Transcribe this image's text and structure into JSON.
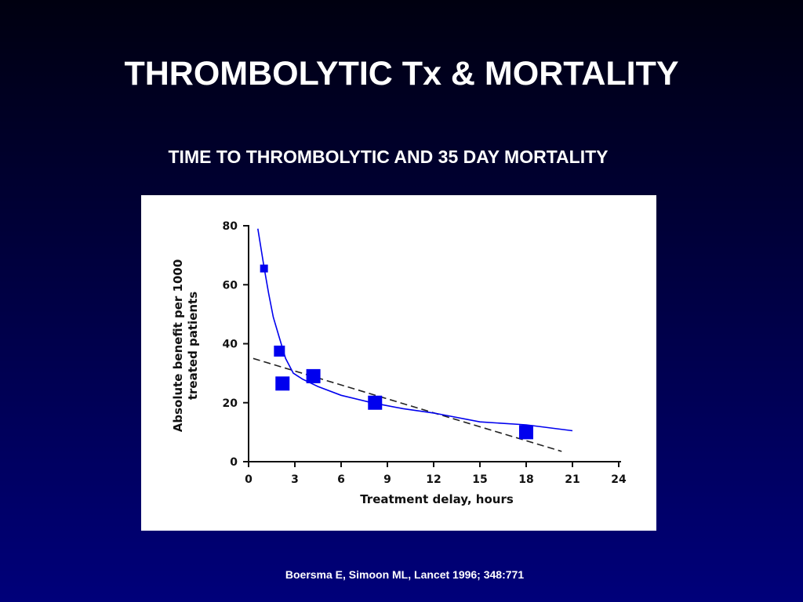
{
  "slide": {
    "title": "THROMBOLYTIC Tx & MORTALITY",
    "subtitle": "TIME TO THROMBOLYTIC AND 35 DAY MORTALITY",
    "citation": "Boersma E, Simoon ML, Lancet 1996; 348:771"
  },
  "chart_data": {
    "type": "scatter",
    "title": "",
    "xlabel": "Treatment delay, hours",
    "ylabel_lines": [
      "Absolute benefit per 1000",
      "treated patients"
    ],
    "xlim": [
      0,
      24
    ],
    "ylim": [
      0,
      80
    ],
    "x_ticks": [
      0,
      3,
      6,
      9,
      12,
      15,
      18,
      21,
      24
    ],
    "y_ticks": [
      0,
      20,
      40,
      60,
      80
    ],
    "grid": false,
    "colors": {
      "points": "#0000ee",
      "curve": "#0000ee",
      "trend": "#222222"
    },
    "points": [
      {
        "x": 1.0,
        "y": 65.5,
        "size": "small"
      },
      {
        "x": 2.0,
        "y": 37.5,
        "size": "medium"
      },
      {
        "x": 2.2,
        "y": 26.5,
        "size": "large"
      },
      {
        "x": 4.2,
        "y": 29.0,
        "size": "large"
      },
      {
        "x": 8.2,
        "y": 20.0,
        "size": "large"
      },
      {
        "x": 18.0,
        "y": 10.0,
        "size": "large"
      }
    ],
    "curve": [
      [
        0.6,
        79
      ],
      [
        1.0,
        66
      ],
      [
        1.3,
        57
      ],
      [
        1.6,
        49
      ],
      [
        2.0,
        42
      ],
      [
        2.4,
        35
      ],
      [
        2.9,
        30
      ],
      [
        3.5,
        28
      ],
      [
        4.5,
        25.5
      ],
      [
        6.0,
        22.5
      ],
      [
        8.0,
        20
      ],
      [
        10.0,
        18
      ],
      [
        12.0,
        16.5
      ],
      [
        15.0,
        13.5
      ],
      [
        18.0,
        12.5
      ],
      [
        21.0,
        10.5
      ]
    ],
    "trend_line": [
      [
        0.3,
        35
      ],
      [
        20.3,
        3.5
      ]
    ]
  }
}
